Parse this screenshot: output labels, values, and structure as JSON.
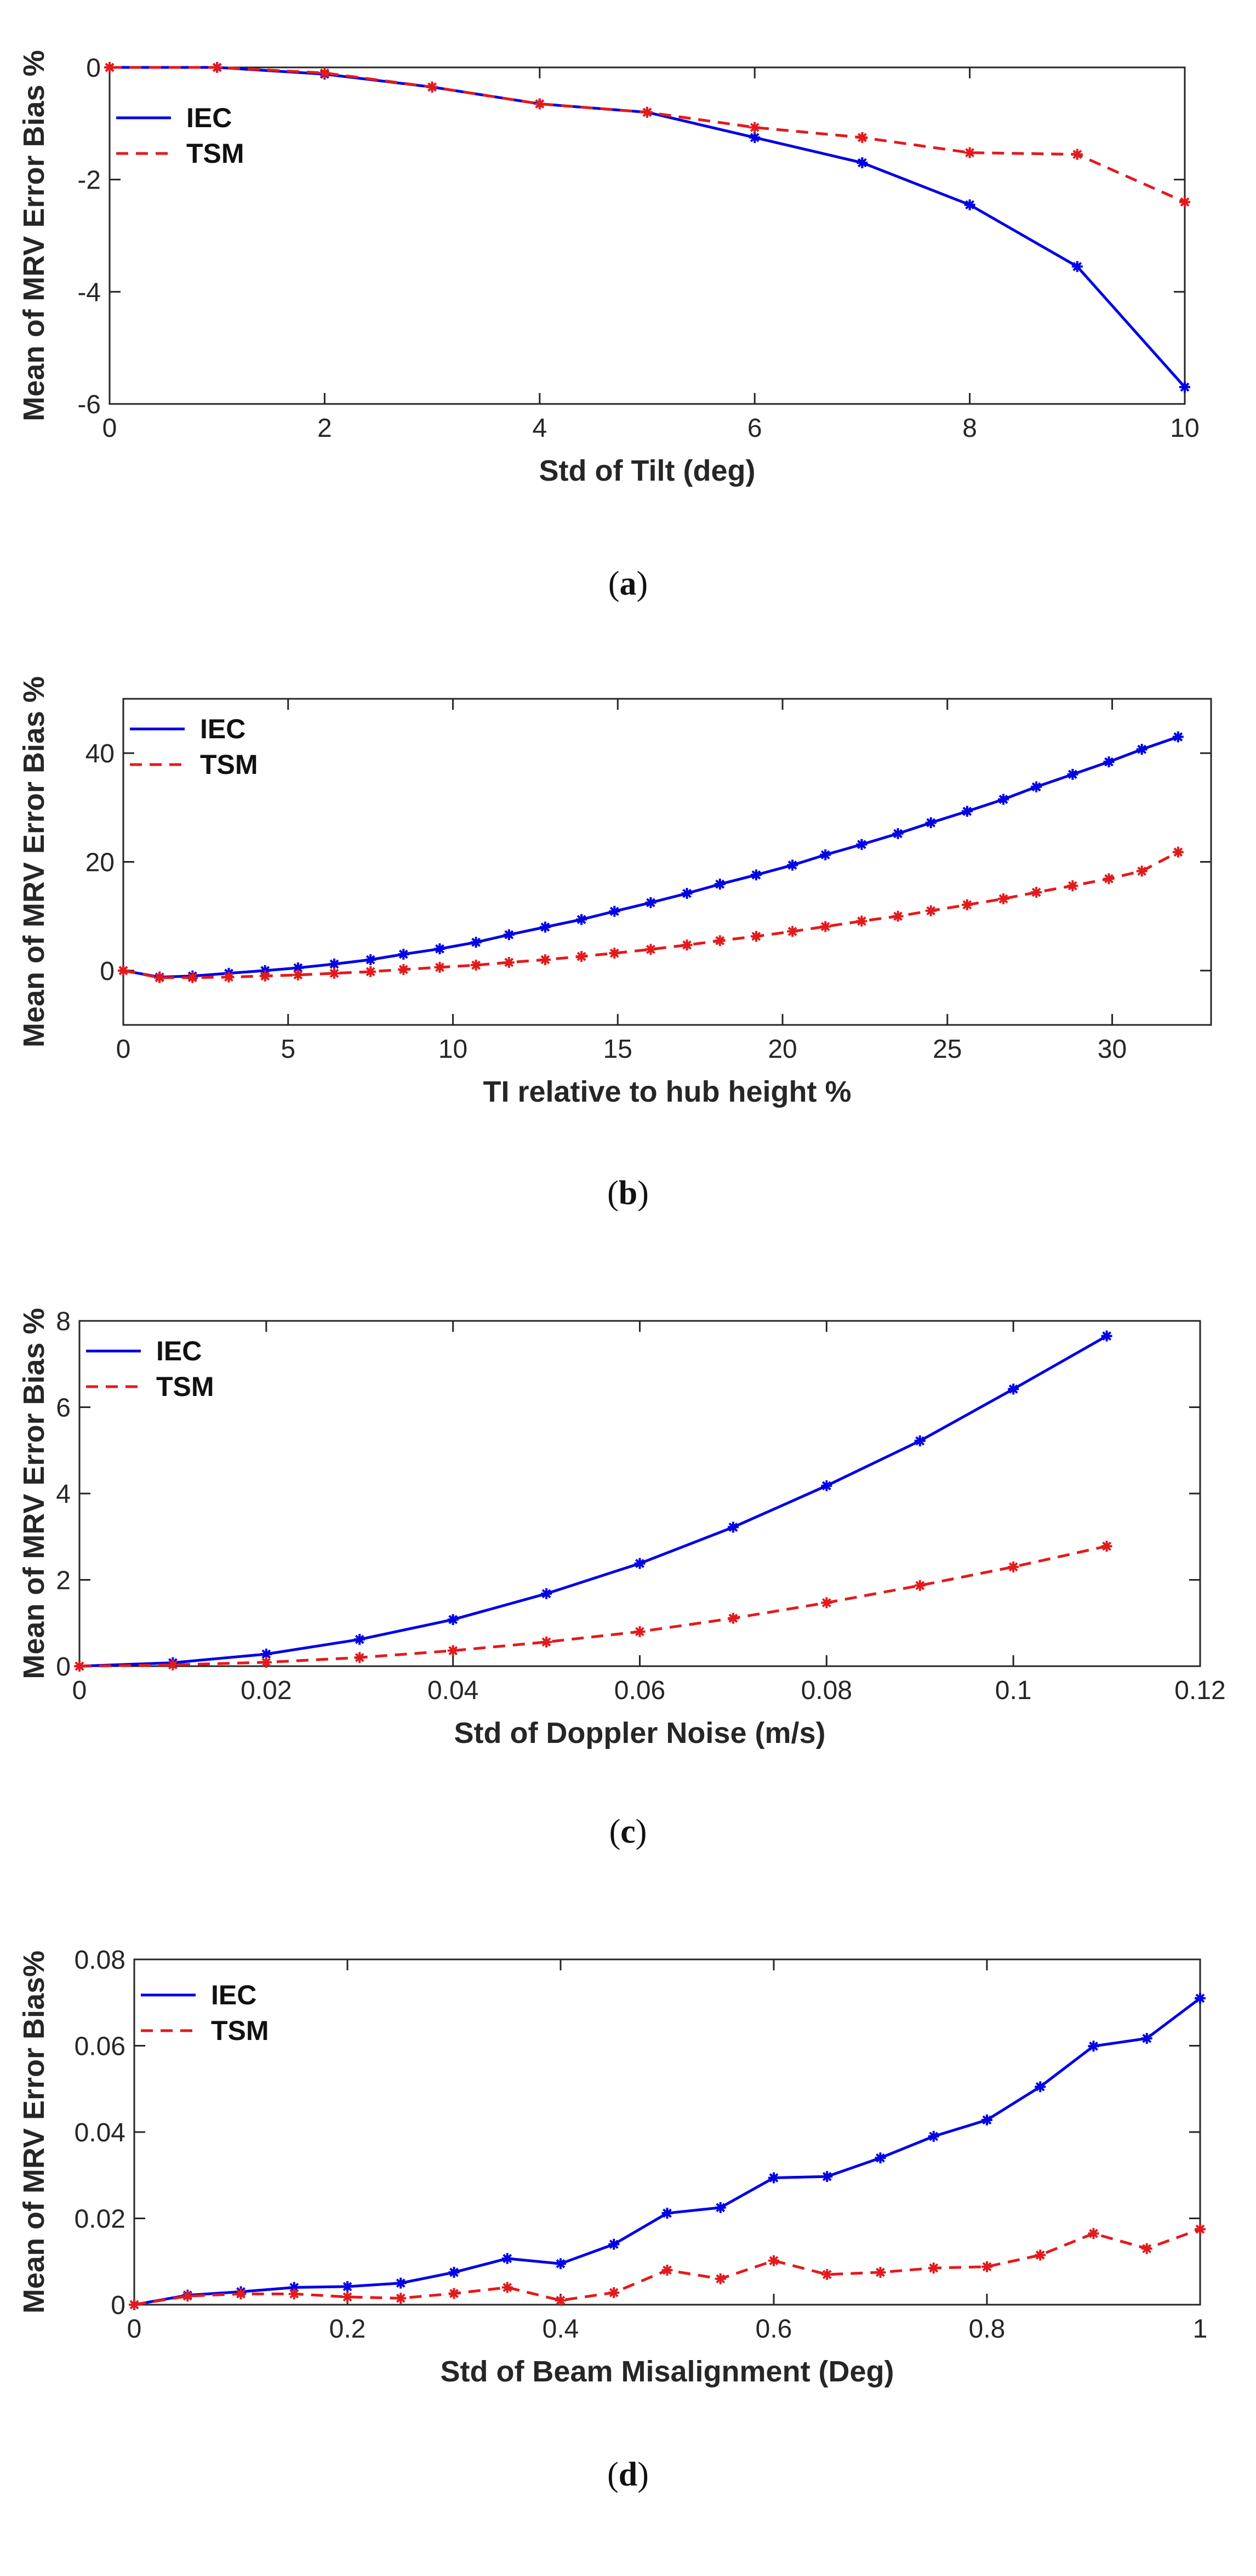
{
  "colors": {
    "iec": "#0000e6",
    "tsm": "#e31a1c",
    "axis": "#262626"
  },
  "chart_data": [
    {
      "type": "line",
      "caption_letter": "a",
      "xlabel": "Std of Tilt (deg)",
      "ylabel": "Mean of MRV Error Bias %",
      "xlim": [
        0,
        10
      ],
      "ylim": [
        -6,
        0
      ],
      "xticks": [
        0,
        2,
        4,
        6,
        8,
        10
      ],
      "xtick_labels": [
        "0",
        "2",
        "4",
        "6",
        "8",
        "10"
      ],
      "yticks": [
        -6,
        -4,
        -2,
        0
      ],
      "ytick_labels": [
        "-6",
        "-4",
        "-2",
        "0"
      ],
      "grid": false,
      "legend_position": "top-left",
      "series": [
        {
          "name": "IEC",
          "style": "solid",
          "color": "#0000e6",
          "x": [
            0,
            1,
            2,
            3,
            4,
            5,
            6,
            7,
            8,
            9,
            10
          ],
          "y": [
            0,
            0,
            -0.12,
            -0.35,
            -0.65,
            -0.8,
            -1.25,
            -1.7,
            -2.45,
            -3.55,
            -5.7
          ]
        },
        {
          "name": "TSM",
          "style": "dashed",
          "color": "#e31a1c",
          "x": [
            0,
            1,
            2,
            3,
            4,
            5,
            6,
            7,
            8,
            9,
            10
          ],
          "y": [
            0,
            0,
            -0.1,
            -0.35,
            -0.65,
            -0.8,
            -1.07,
            -1.25,
            -1.52,
            -1.55,
            -2.4
          ]
        }
      ]
    },
    {
      "type": "line",
      "caption_letter": "b",
      "xlabel": "TI relative to hub height %",
      "ylabel": "Mean of MRV Error Bias %",
      "xlim": [
        0,
        33
      ],
      "ylim": [
        -10,
        50
      ],
      "xticks": [
        0,
        5,
        10,
        15,
        20,
        25,
        30
      ],
      "xtick_labels": [
        "0",
        "5",
        "10",
        "15",
        "20",
        "25",
        "30"
      ],
      "yticks": [
        0,
        20,
        40
      ],
      "ytick_labels": [
        "0",
        "20",
        "40"
      ],
      "grid": false,
      "legend_position": "top-left",
      "series": [
        {
          "name": "IEC",
          "style": "solid",
          "color": "#0000e6",
          "x": [
            0,
            1.1,
            2.1,
            3.2,
            4.3,
            5.3,
            6.4,
            7.5,
            8.5,
            9.6,
            10.7,
            11.7,
            12.8,
            13.9,
            14.9,
            16.0,
            17.1,
            18.1,
            19.2,
            20.3,
            21.3,
            22.4,
            23.5,
            24.5,
            25.6,
            26.7,
            27.7,
            28.8,
            29.9,
            30.9,
            32.0
          ],
          "y": [
            0,
            -1.2,
            -1.0,
            -0.5,
            0.0,
            0.5,
            1.2,
            2.0,
            3.0,
            4.0,
            5.2,
            6.6,
            8.0,
            9.4,
            10.9,
            12.5,
            14.2,
            15.9,
            17.6,
            19.4,
            21.3,
            23.2,
            25.2,
            27.2,
            29.3,
            31.5,
            33.8,
            36.1,
            38.4,
            40.7,
            43.0
          ]
        },
        {
          "name": "TSM",
          "style": "dashed",
          "color": "#e31a1c",
          "x": [
            0,
            1.1,
            2.1,
            3.2,
            4.3,
            5.3,
            6.4,
            7.5,
            8.5,
            9.6,
            10.7,
            11.7,
            12.8,
            13.9,
            14.9,
            16.0,
            17.1,
            18.1,
            19.2,
            20.3,
            21.3,
            22.4,
            23.5,
            24.5,
            25.6,
            26.7,
            27.7,
            28.8,
            29.9,
            30.9,
            32.0
          ],
          "y": [
            0,
            -1.3,
            -1.3,
            -1.2,
            -1.0,
            -0.8,
            -0.5,
            -0.2,
            0.2,
            0.6,
            1.0,
            1.5,
            2.0,
            2.6,
            3.2,
            3.9,
            4.7,
            5.5,
            6.3,
            7.2,
            8.1,
            9.1,
            10.0,
            11.0,
            12.1,
            13.2,
            14.4,
            15.6,
            16.9,
            18.3,
            21.8
          ]
        }
      ]
    },
    {
      "type": "line",
      "caption_letter": "c",
      "xlabel": "Std of Doppler Noise (m/s)",
      "ylabel": "Mean of MRV Error Bias %",
      "xlim": [
        0,
        0.12
      ],
      "ylim": [
        0,
        8
      ],
      "xticks": [
        0,
        0.02,
        0.04,
        0.06,
        0.08,
        0.1,
        0.12
      ],
      "xtick_labels": [
        "0",
        "0.02",
        "0.04",
        "0.06",
        "0.08",
        "0.1",
        "0.12"
      ],
      "yticks": [
        0,
        2,
        4,
        6,
        8
      ],
      "ytick_labels": [
        "0",
        "2",
        "4",
        "6",
        "8"
      ],
      "grid": false,
      "legend_position": "top-left",
      "series": [
        {
          "name": "IEC",
          "style": "solid",
          "color": "#0000e6",
          "x": [
            0,
            0.01,
            0.02,
            0.03,
            0.04,
            0.05,
            0.06,
            0.07,
            0.08,
            0.09,
            0.1,
            0.11
          ],
          "y": [
            0,
            0.08,
            0.28,
            0.62,
            1.08,
            1.68,
            2.38,
            3.22,
            4.18,
            5.22,
            6.42,
            7.65
          ]
        },
        {
          "name": "TSM",
          "style": "dashed",
          "color": "#e31a1c",
          "x": [
            0,
            0.01,
            0.02,
            0.03,
            0.04,
            0.05,
            0.06,
            0.07,
            0.08,
            0.09,
            0.1,
            0.11
          ],
          "y": [
            0,
            0.03,
            0.09,
            0.2,
            0.36,
            0.56,
            0.8,
            1.11,
            1.47,
            1.87,
            2.3,
            2.78
          ]
        }
      ]
    },
    {
      "type": "line",
      "caption_letter": "d",
      "xlabel": "Std of Beam Misalignment (Deg)",
      "ylabel": "Mean of MRV Error Bias%",
      "xlim": [
        0,
        1
      ],
      "ylim": [
        0,
        0.08
      ],
      "xticks": [
        0,
        0.2,
        0.4,
        0.6,
        0.8,
        1
      ],
      "xtick_labels": [
        "0",
        "0.2",
        "0.4",
        "0.6",
        "0.8",
        "1"
      ],
      "yticks": [
        0,
        0.02,
        0.04,
        0.06,
        0.08
      ],
      "ytick_labels": [
        "0",
        "0.02",
        "0.04",
        "0.06",
        "0.08"
      ],
      "grid": false,
      "legend_position": "top-left",
      "series": [
        {
          "name": "IEC",
          "style": "solid",
          "color": "#0000e6",
          "x": [
            0,
            0.05,
            0.1,
            0.15,
            0.2,
            0.25,
            0.3,
            0.35,
            0.4,
            0.45,
            0.5,
            0.55,
            0.6,
            0.65,
            0.7,
            0.75,
            0.8,
            0.85,
            0.9,
            0.95,
            1.0
          ],
          "y": [
            0,
            0.0022,
            0.003,
            0.004,
            0.0042,
            0.005,
            0.0075,
            0.0107,
            0.0095,
            0.014,
            0.0212,
            0.0225,
            0.0294,
            0.0297,
            0.034,
            0.039,
            0.0428,
            0.0505,
            0.0599,
            0.0617,
            0.071
          ]
        },
        {
          "name": "TSM",
          "style": "dashed",
          "color": "#e31a1c",
          "x": [
            0,
            0.05,
            0.1,
            0.15,
            0.2,
            0.25,
            0.3,
            0.35,
            0.4,
            0.45,
            0.5,
            0.55,
            0.6,
            0.65,
            0.7,
            0.75,
            0.8,
            0.85,
            0.9,
            0.95,
            1.0
          ],
          "y": [
            0,
            0.002,
            0.0025,
            0.0025,
            0.0018,
            0.0015,
            0.0026,
            0.004,
            0.001,
            0.0028,
            0.008,
            0.006,
            0.0102,
            0.007,
            0.0075,
            0.0085,
            0.0088,
            0.0115,
            0.0165,
            0.013,
            0.0175
          ]
        }
      ]
    }
  ]
}
